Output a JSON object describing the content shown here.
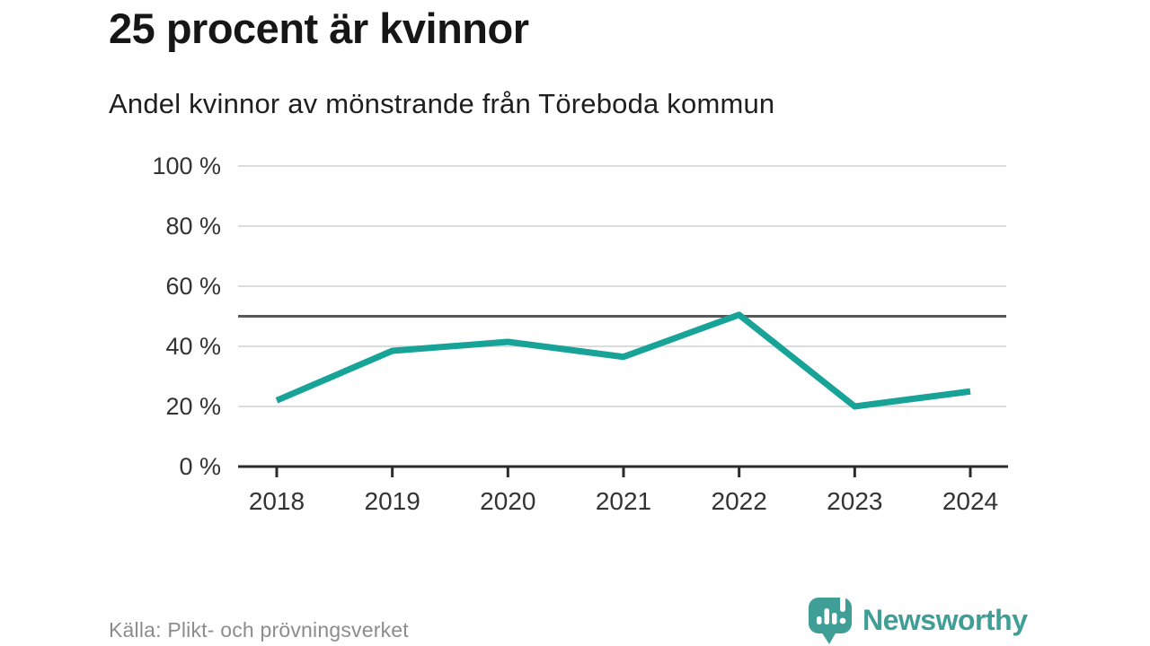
{
  "header": {
    "title": "25 procent är kvinnor",
    "subtitle": "Andel kvinnor av mönstrande från Töreboda kommun"
  },
  "footer": {
    "source": "Källa: Plikt- och prövningsverket",
    "brand": "Newsworthy"
  },
  "colors": {
    "line": "#17a398",
    "grid": "#dcdcdc",
    "reference_line": "#58585b",
    "axis": "#2b2b2b",
    "tick_label": "#333333",
    "source_text": "#8c8c8c",
    "brand_teal": "#3f9e96"
  },
  "chart_data": {
    "type": "line",
    "title": "25 procent är kvinnor",
    "subtitle": "Andel kvinnor av mönstrande från Töreboda kommun",
    "x": [
      2018,
      2019,
      2020,
      2021,
      2022,
      2023,
      2024
    ],
    "series": [
      {
        "name": "Andel kvinnor av mönstrande",
        "values": [
          22,
          38.5,
          41.5,
          36.5,
          50.5,
          20,
          25
        ]
      }
    ],
    "xlabel": "",
    "ylabel": "",
    "ylim": [
      0,
      100
    ],
    "yticks": [
      0,
      20,
      40,
      60,
      80,
      100
    ],
    "ytick_suffix": " %",
    "reference_line": 50,
    "grid": true,
    "legend": false,
    "line_width": 7
  }
}
